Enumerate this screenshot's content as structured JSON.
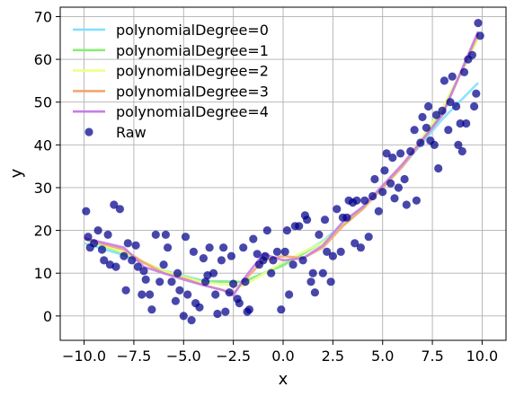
{
  "chart_data": {
    "type": "scatter",
    "title": "",
    "xlabel": "x",
    "ylabel": "y",
    "xlim": [
      -11.2,
      11.2
    ],
    "ylim": [
      -5.7,
      72.2
    ],
    "grid": true,
    "legend_position": "top-left",
    "x_ticks": [
      -10.0,
      -7.5,
      -5.0,
      -2.5,
      0.0,
      2.5,
      5.0,
      7.5,
      10.0
    ],
    "x_tick_labels": [
      "−10.0",
      "−7.5",
      "−5.0",
      "−2.5",
      "0.0",
      "2.5",
      "5.0",
      "7.5",
      "10.0"
    ],
    "y_ticks": [
      0,
      10,
      20,
      30,
      40,
      50,
      60,
      70
    ],
    "y_tick_labels": [
      "0",
      "10",
      "20",
      "30",
      "40",
      "50",
      "60",
      "70"
    ],
    "series": [
      {
        "name": "polynomialDegree=0",
        "kind": "line",
        "color": "#7fe0ff",
        "x": [
          -10,
          -8,
          -6,
          -4,
          -2,
          0,
          2,
          4,
          6,
          8,
          9.8
        ],
        "y": [
          17.0,
          14.2,
          10.6,
          8.2,
          8.0,
          12.0,
          17.5,
          25.5,
          35.0,
          46.0,
          54.5
        ]
      },
      {
        "name": "polynomialDegree=1",
        "kind": "line",
        "color": "#88ee77",
        "x": [
          -10,
          -8,
          -6,
          -4,
          -2,
          0,
          2,
          4,
          6,
          8,
          9.8
        ],
        "y": [
          18.0,
          14.6,
          10.6,
          8.0,
          8.0,
          11.8,
          17.2,
          25.0,
          35.0,
          48.0,
          65.0
        ]
      },
      {
        "name": "polynomialDegree=2",
        "kind": "line",
        "color": "#eeff88",
        "x": [
          -10,
          -8,
          -6,
          -4,
          -2,
          0,
          2,
          4,
          6,
          8,
          9.8
        ],
        "y": [
          18.2,
          14.8,
          10.5,
          7.8,
          7.0,
          12.6,
          17.2,
          25.0,
          35.2,
          48.5,
          65.0
        ]
      },
      {
        "name": "polynomialDegree=3",
        "kind": "line",
        "color": "#f5a66c",
        "x": [
          -10,
          -8,
          -7,
          -6,
          -5,
          -4,
          -3,
          -2.5,
          -2,
          -1,
          0,
          1,
          2,
          3,
          4,
          6,
          8,
          9.8
        ],
        "y": [
          18.0,
          15.5,
          12.5,
          10.0,
          8.8,
          7.2,
          6.0,
          5.2,
          8.0,
          13.0,
          14.0,
          13.5,
          16.0,
          21.0,
          25.0,
          35.0,
          47.0,
          66.0
        ]
      },
      {
        "name": "polynomialDegree=4",
        "kind": "line",
        "color": "#c77ee6",
        "x": [
          -10,
          -8,
          -7,
          -6,
          -5,
          -4,
          -3,
          -2.5,
          -2,
          -1,
          0,
          1,
          2,
          3,
          4,
          6,
          8,
          9.8
        ],
        "y": [
          18.2,
          16.0,
          11.5,
          10.0,
          8.5,
          7.2,
          6.0,
          4.8,
          8.5,
          14.5,
          13.0,
          13.5,
          16.5,
          22.0,
          25.5,
          35.5,
          47.0,
          66.5
        ]
      },
      {
        "name": "Raw",
        "kind": "scatter",
        "color": "#00008b",
        "x": [
          -9.9,
          -9.8,
          -9.7,
          -9.5,
          -9.3,
          -9.1,
          -9.0,
          -8.8,
          -8.7,
          -8.5,
          -8.4,
          -8.2,
          -8.0,
          -7.9,
          -7.8,
          -7.6,
          -7.4,
          -7.3,
          -7.1,
          -7.0,
          -6.9,
          -6.7,
          -6.6,
          -6.4,
          -6.2,
          -6.0,
          -5.9,
          -5.8,
          -5.6,
          -5.4,
          -5.3,
          -5.2,
          -5.0,
          -4.9,
          -4.8,
          -4.6,
          -4.5,
          -4.4,
          -4.2,
          -4.0,
          -3.9,
          -3.8,
          -3.7,
          -3.5,
          -3.4,
          -3.3,
          -3.1,
          -3.0,
          -2.9,
          -2.7,
          -2.6,
          -2.5,
          -2.3,
          -2.2,
          -2.0,
          -1.9,
          -1.8,
          -1.7,
          -1.5,
          -1.3,
          -1.2,
          -1.0,
          -0.9,
          -0.8,
          -0.6,
          -0.5,
          -0.3,
          -0.1,
          0.1,
          0.2,
          0.3,
          0.5,
          0.6,
          0.8,
          1.0,
          1.1,
          1.2,
          1.4,
          1.5,
          1.6,
          1.8,
          2.0,
          2.1,
          2.2,
          2.4,
          2.5,
          2.7,
          2.9,
          3.0,
          3.2,
          3.3,
          3.5,
          3.6,
          3.7,
          3.9,
          4.1,
          4.3,
          4.5,
          4.6,
          4.8,
          5.0,
          5.1,
          5.2,
          5.4,
          5.5,
          5.6,
          5.8,
          5.9,
          6.1,
          6.2,
          6.4,
          6.6,
          6.7,
          6.9,
          7.0,
          7.2,
          7.3,
          7.4,
          7.6,
          7.7,
          7.8,
          8.0,
          8.1,
          8.3,
          8.4,
          8.5,
          8.7,
          8.8,
          9.0,
          9.1,
          9.3,
          9.5,
          9.6,
          9.8,
          9.9,
          9.7,
          9.2,
          8.9
        ],
        "y": [
          24.5,
          18.5,
          16.0,
          17.0,
          20.0,
          15.5,
          13.0,
          19.0,
          12.0,
          26.0,
          11.5,
          25.0,
          14.0,
          6.0,
          17.0,
          13.0,
          16.5,
          11.5,
          5.0,
          10.5,
          8.5,
          5.0,
          1.5,
          19.0,
          8.0,
          12.0,
          19.0,
          16.0,
          8.0,
          3.5,
          10.0,
          6.0,
          0.0,
          18.5,
          5.0,
          -1.0,
          15.0,
          3.0,
          2.0,
          13.5,
          8.0,
          9.5,
          16.0,
          10.0,
          5.0,
          0.5,
          13.0,
          16.0,
          1.0,
          5.5,
          14.0,
          7.5,
          4.0,
          3.0,
          16.0,
          8.0,
          1.0,
          1.5,
          18.0,
          14.5,
          12.0,
          13.0,
          14.0,
          20.0,
          10.0,
          13.0,
          15.0,
          1.5,
          15.0,
          20.0,
          5.0,
          12.0,
          21.0,
          21.0,
          13.0,
          23.5,
          22.5,
          8.0,
          10.0,
          5.5,
          19.0,
          10.0,
          22.5,
          15.0,
          8.0,
          14.0,
          25.0,
          15.0,
          23.0,
          23.0,
          27.0,
          26.5,
          17.0,
          27.0,
          16.0,
          27.0,
          18.5,
          28.0,
          32.0,
          24.5,
          29.0,
          34.0,
          38.0,
          31.0,
          37.0,
          27.5,
          30.0,
          38.0,
          32.0,
          26.0,
          38.5,
          43.5,
          27.0,
          40.5,
          46.5,
          44.0,
          49.0,
          41.0,
          40.0,
          47.0,
          34.5,
          48.0,
          55.0,
          43.5,
          50.0,
          56.0,
          49.0,
          40.0,
          38.5,
          57.0,
          60.0,
          61.0,
          49.0,
          68.5,
          65.5,
          52.0,
          45.0,
          45.0
        ]
      }
    ]
  }
}
